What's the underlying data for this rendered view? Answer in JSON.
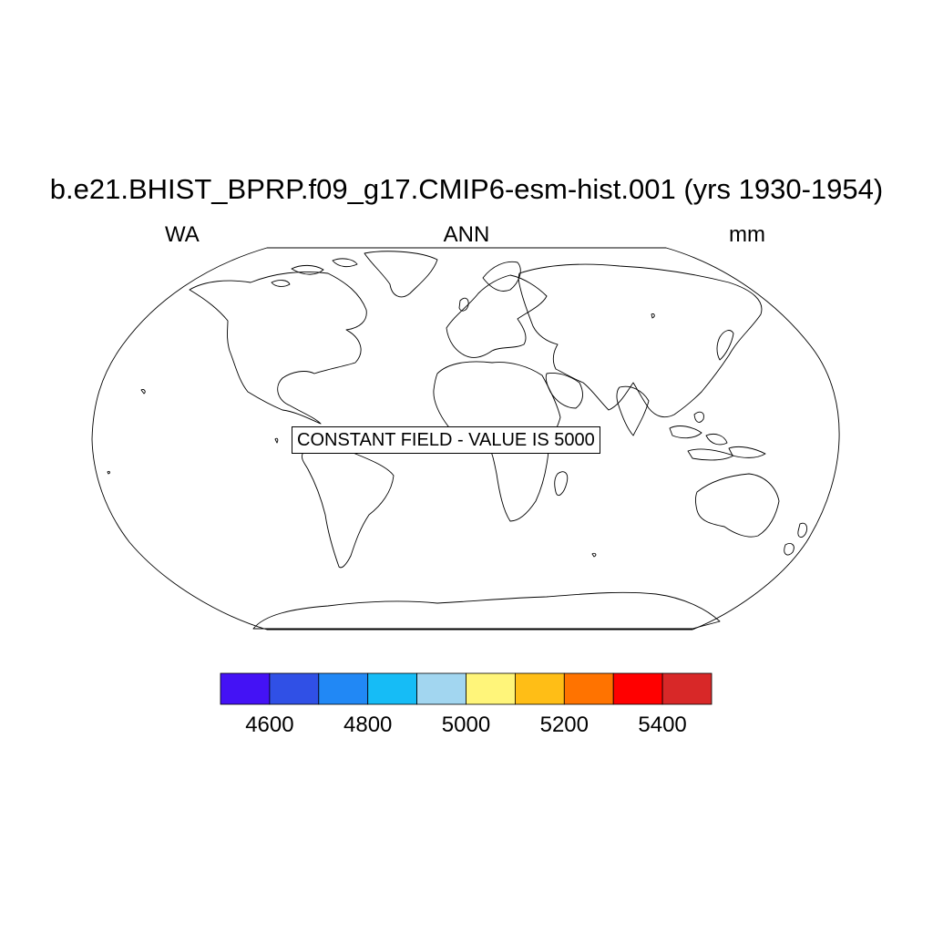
{
  "header": {
    "title": "b.e21.BHIST_BPRP.f09_g17.CMIP6-esm-hist.001 (yrs 1930-1954)",
    "left_label": "WA",
    "center_label": "ANN",
    "right_label": "mm"
  },
  "map": {
    "projection": "robinson",
    "message": "CONSTANT FIELD - VALUE IS 5000"
  },
  "colorbar": {
    "levels": [
      4500,
      4600,
      4700,
      4800,
      4900,
      5000,
      5100,
      5200,
      5300,
      5400,
      5500
    ],
    "colors": [
      "#4412F5",
      "#3050E6",
      "#2188F5",
      "#16BCF6",
      "#A2D6F0",
      "#FFF57A",
      "#FFBE16",
      "#FF7300",
      "#FF0000",
      "#D82828"
    ],
    "tick_labels": [
      "4600",
      "4800",
      "5000",
      "5200",
      "5400"
    ]
  }
}
